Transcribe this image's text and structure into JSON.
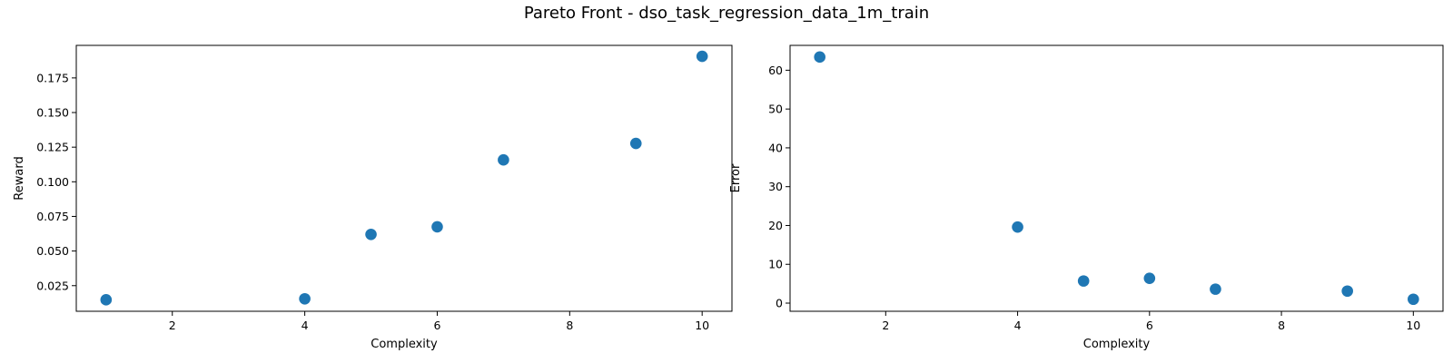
{
  "figure": {
    "title": "Pareto Front - dso_task_regression_data_1m_train"
  },
  "chart_data": [
    {
      "type": "scatter",
      "xlabel": "Complexity",
      "ylabel": "Reward",
      "xlim": [
        0.55,
        10.45
      ],
      "ylim": [
        0.0065,
        0.1985
      ],
      "xticks": [
        2,
        4,
        6,
        8,
        10
      ],
      "yticks": [
        0.025,
        0.05,
        0.075,
        0.1,
        0.125,
        0.15,
        0.175
      ],
      "ytick_labels": [
        "0.025",
        "0.050",
        "0.075",
        "0.100",
        "0.125",
        "0.150",
        "0.175"
      ],
      "grid": false,
      "series": [
        {
          "color": "#1f77b4",
          "x": [
            1,
            4,
            5,
            6,
            7,
            9,
            10
          ],
          "y": [
            0.0148,
            0.0155,
            0.062,
            0.0675,
            0.1158,
            0.1277,
            0.1906
          ]
        }
      ]
    },
    {
      "type": "scatter",
      "xlabel": "Complexity",
      "ylabel": "Error",
      "xlim": [
        0.55,
        10.45
      ],
      "ylim": [
        -2.1,
        66.4
      ],
      "xticks": [
        2,
        4,
        6,
        8,
        10
      ],
      "yticks": [
        0,
        10,
        20,
        30,
        40,
        50,
        60
      ],
      "ytick_labels": [
        "0",
        "10",
        "20",
        "30",
        "40",
        "50",
        "60"
      ],
      "grid": false,
      "series": [
        {
          "color": "#1f77b4",
          "x": [
            1,
            4,
            5,
            6,
            7,
            9,
            10
          ],
          "y": [
            63.4,
            19.6,
            5.7,
            6.4,
            3.6,
            3.1,
            1.0
          ]
        }
      ]
    }
  ]
}
